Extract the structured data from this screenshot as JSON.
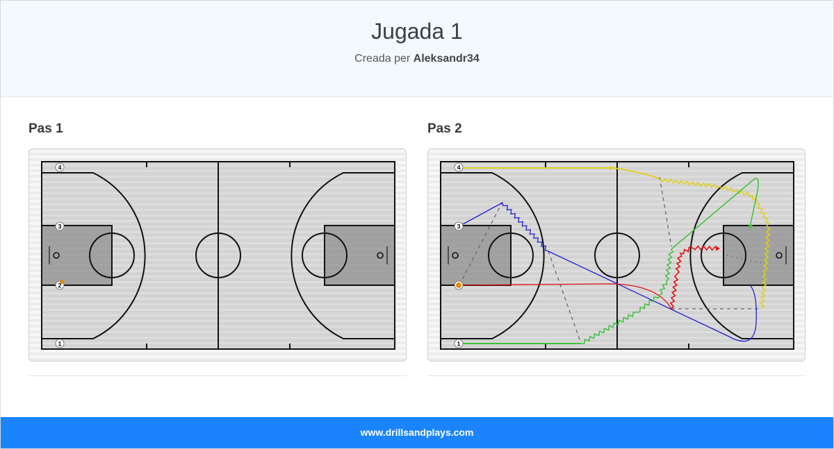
{
  "header": {
    "title": "Jugada 1",
    "created_prefix": "Creada per",
    "author": "Aleksandr34"
  },
  "steps": [
    {
      "label": "Pas 1"
    },
    {
      "label": "Pas 2"
    }
  ],
  "players": [
    "1",
    "2",
    "3",
    "4"
  ],
  "colors": {
    "player1": "#3cc23c",
    "player2": "#e01010",
    "player3": "#2020d0",
    "player4": "#e0d010",
    "pass": "#666666",
    "ball": "#e08a10",
    "footer": "#1b84fc"
  },
  "footer": {
    "url": "www.drillsandplays.com"
  }
}
